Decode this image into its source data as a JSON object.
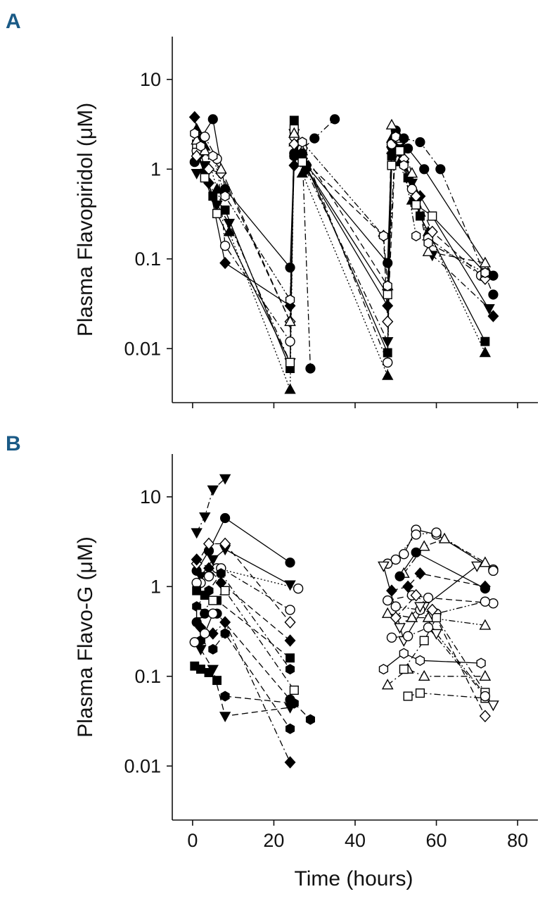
{
  "figure": {
    "x_axis_label": "Time (hours)"
  },
  "chart_data": [
    {
      "panel_label": "A",
      "type": "line",
      "xlabel": "",
      "ylabel": "Plasma Flavopiridol (μM)",
      "y_scale": "log",
      "xlim": [
        -5,
        85
      ],
      "ylim": [
        0.0025,
        30
      ],
      "x_ticks": [
        0,
        20,
        40,
        60,
        80
      ],
      "x_tick_labels": [
        "",
        "",
        "",
        "",
        ""
      ],
      "y_ticks": [
        0.01,
        0.1,
        1,
        10
      ],
      "y_tick_labels": [
        "0.01",
        "0.1",
        "1",
        "10"
      ],
      "series": [
        {
          "marker": "diamond",
          "filled": true,
          "dash": "solid",
          "x": [
            0.5,
            2,
            4,
            8,
            24,
            25,
            26,
            28,
            48,
            49,
            50,
            52,
            56,
            74
          ],
          "y": [
            3.8,
            1.5,
            0.7,
            0.09,
            0.03,
            1.1,
            1.6,
            1.0,
            0.03,
            1.5,
            2.4,
            1.2,
            0.5,
            0.023
          ]
        },
        {
          "marker": "circle",
          "filled": true,
          "dash": "solid",
          "x": [
            0.5,
            2,
            5,
            8,
            24,
            25,
            26,
            28,
            48,
            49,
            50,
            53,
            57,
            74
          ],
          "y": [
            1.2,
            2.2,
            3.6,
            0.6,
            0.08,
            1.5,
            1.8,
            1.1,
            0.09,
            1.8,
            2.7,
            1.7,
            1.0,
            0.065
          ]
        },
        {
          "marker": "square",
          "filled": true,
          "dash": "solid",
          "x": [
            1,
            3,
            5,
            8,
            24,
            25,
            27,
            48,
            49,
            51,
            53,
            56,
            72
          ],
          "y": [
            1.5,
            0.9,
            0.5,
            0.35,
            0.006,
            3.5,
            1.4,
            0.009,
            1.4,
            1.9,
            0.8,
            0.3,
            0.012
          ]
        },
        {
          "marker": "triangle-down",
          "filled": true,
          "dash": "dashdot",
          "x": [
            1,
            3,
            6,
            9,
            24,
            25,
            27,
            48,
            49,
            51,
            54,
            59,
            73
          ],
          "y": [
            0.9,
            1.1,
            0.4,
            0.25,
            0.007,
            2.5,
            1.2,
            0.012,
            1.6,
            1.5,
            0.7,
            0.11,
            0.028
          ]
        },
        {
          "marker": "triangle-up",
          "filled": true,
          "dash": "dotted",
          "x": [
            1,
            3,
            6,
            9,
            24,
            25,
            27,
            48,
            49,
            51,
            54,
            58,
            72
          ],
          "y": [
            2.8,
            1.8,
            0.6,
            0.2,
            0.0035,
            2.0,
            0.9,
            0.005,
            2.2,
            1.2,
            0.45,
            0.2,
            0.009
          ]
        },
        {
          "marker": "circle",
          "filled": false,
          "dash": "dashdot",
          "x": [
            1,
            3,
            6,
            8,
            24,
            25,
            27,
            48,
            49,
            51,
            54,
            58,
            71
          ],
          "y": [
            1.6,
            2.3,
            1.3,
            0.14,
            0.012,
            2.3,
            1.7,
            0.007,
            1.9,
            2.1,
            0.6,
            0.17,
            0.065
          ]
        },
        {
          "marker": "diamond",
          "filled": false,
          "dash": "dashed",
          "x": [
            1,
            4,
            7,
            24,
            25,
            27,
            47,
            48,
            50,
            52,
            55,
            59,
            72
          ],
          "y": [
            1.4,
            1.0,
            0.9,
            0.02,
            1.9,
            1.3,
            0.18,
            0.02,
            2.2,
            1.3,
            0.5,
            0.2,
            0.06
          ]
        },
        {
          "marker": "square",
          "filled": false,
          "dash": "solid",
          "x": [
            1,
            3,
            6,
            24,
            25,
            27,
            48,
            49,
            51,
            55,
            59,
            72
          ],
          "y": [
            1.9,
            0.8,
            0.32,
            0.007,
            2.8,
            1.2,
            0.04,
            1.1,
            1.6,
            0.4,
            0.3,
            0.07
          ]
        },
        {
          "marker": "triangle-up",
          "filled": false,
          "dash": "dashed",
          "x": [
            1,
            3,
            7,
            24,
            25,
            27,
            48,
            49,
            51,
            54,
            58,
            72
          ],
          "y": [
            2.1,
            1.6,
            1.0,
            0.02,
            2.5,
            1.6,
            0.05,
            3.1,
            2.2,
            0.9,
            0.12,
            0.09
          ]
        },
        {
          "marker": "hexagon",
          "filled": false,
          "dash": "dashdotdot",
          "x": [
            0.5,
            2,
            5,
            8,
            24,
            25,
            27,
            47,
            48,
            50,
            52,
            55,
            58,
            72
          ],
          "y": [
            2.5,
            1.8,
            1.4,
            0.5,
            0.035,
            1.4,
            2.0,
            0.18,
            0.05,
            2.3,
            1.1,
            0.18,
            0.15,
            0.07
          ]
        },
        {
          "marker": "circle",
          "filled": true,
          "dash": "dashdot",
          "x": [
            25,
            30,
            35
          ],
          "y": [
            1.4,
            2.2,
            3.6
          ]
        },
        {
          "marker": "circle",
          "filled": true,
          "dash": "dashdot",
          "x": [
            27,
            29
          ],
          "y": [
            1.5,
            0.006
          ]
        },
        {
          "marker": "circle",
          "filled": true,
          "dash": "dashdot",
          "x": [
            52,
            56,
            61,
            74
          ],
          "y": [
            2.2,
            2.0,
            1.0,
            0.04
          ]
        }
      ]
    },
    {
      "panel_label": "B",
      "type": "line",
      "xlabel": "Time (hours)",
      "ylabel": "Plasma Flavo-G (μM)",
      "y_scale": "log",
      "xlim": [
        -5,
        85
      ],
      "ylim": [
        0.0025,
        30
      ],
      "x_ticks": [
        0,
        20,
        40,
        60,
        80
      ],
      "x_tick_labels": [
        "0",
        "20",
        "40",
        "60",
        "80"
      ],
      "y_ticks": [
        0.01,
        0.1,
        1,
        10
      ],
      "y_tick_labels": [
        "0.01",
        "0.1",
        "1",
        "10"
      ],
      "series": [
        {
          "marker": "triangle-down",
          "filled": true,
          "dash": "dashdot",
          "x": [
            1,
            3,
            5,
            8
          ],
          "y": [
            4.0,
            6.0,
            12.0,
            16.0
          ]
        },
        {
          "marker": "circle",
          "filled": true,
          "dash": "solid",
          "x": [
            1,
            4,
            8,
            24
          ],
          "y": [
            1.5,
            2.5,
            5.8,
            1.85
          ]
        },
        {
          "marker": "triangle-down",
          "filled": true,
          "dash": "solid",
          "x": [
            2,
            5,
            8,
            24
          ],
          "y": [
            1.3,
            2.0,
            2.6,
            1.05
          ]
        },
        {
          "marker": "circle",
          "filled": false,
          "dash": "dotted",
          "x": [
            2,
            6,
            26
          ],
          "y": [
            1.1,
            1.6,
            0.95
          ]
        },
        {
          "marker": "diamond",
          "filled": false,
          "dash": "dashed",
          "x": [
            1,
            4,
            8,
            24
          ],
          "y": [
            1.8,
            3.0,
            3.0,
            0.4
          ]
        },
        {
          "marker": "diamond",
          "filled": true,
          "dash": "dashed",
          "x": [
            1,
            4,
            7,
            24
          ],
          "y": [
            2.0,
            1.6,
            1.1,
            0.25
          ]
        },
        {
          "marker": "circle",
          "filled": false,
          "dash": "dashdot",
          "x": [
            1,
            4,
            7,
            24
          ],
          "y": [
            1.1,
            1.3,
            1.6,
            0.55
          ]
        },
        {
          "marker": "square",
          "filled": true,
          "dash": "dashed",
          "x": [
            1,
            3,
            6,
            24
          ],
          "y": [
            0.9,
            0.8,
            0.7,
            0.16
          ]
        },
        {
          "marker": "hexagon",
          "filled": true,
          "dash": "dashdot",
          "x": [
            1,
            4,
            7,
            24
          ],
          "y": [
            0.6,
            0.9,
            1.4,
            0.12
          ]
        },
        {
          "marker": "square",
          "filled": false,
          "dash": "dashdot",
          "x": [
            2,
            5,
            8,
            25
          ],
          "y": [
            0.5,
            0.7,
            0.9,
            0.07
          ]
        },
        {
          "marker": "circle",
          "filled": true,
          "dash": "dashed",
          "x": [
            1,
            3,
            6,
            24
          ],
          "y": [
            0.4,
            0.5,
            0.5,
            0.055
          ]
        },
        {
          "marker": "diamond",
          "filled": true,
          "dash": "dashdot",
          "x": [
            2,
            5,
            8,
            24
          ],
          "y": [
            0.35,
            0.3,
            0.4,
            0.011
          ]
        },
        {
          "marker": "hexagon",
          "filled": true,
          "dash": "dashed",
          "x": [
            2,
            5,
            8,
            24
          ],
          "y": [
            0.25,
            0.2,
            0.3,
            0.026
          ]
        },
        {
          "marker": "triangle-down",
          "filled": true,
          "dash": "dashed",
          "x": [
            2,
            5,
            8,
            24
          ],
          "y": [
            0.2,
            0.12,
            0.036,
            0.045
          ]
        },
        {
          "marker": "hexagon",
          "filled": true,
          "dash": "dashed",
          "x": [
            8,
            25,
            29
          ],
          "y": [
            0.06,
            0.05,
            0.033
          ]
        },
        {
          "marker": "circle",
          "filled": false,
          "dash": "solid",
          "x": [
            0.5,
            3,
            5
          ],
          "y": [
            0.24,
            0.3,
            0.5
          ]
        },
        {
          "marker": "square",
          "filled": true,
          "dash": "solid",
          "x": [
            0.5,
            2,
            4,
            6
          ],
          "y": [
            0.13,
            0.12,
            0.11,
            0.09
          ]
        },
        {
          "marker": "circle",
          "filled": false,
          "dash": "solid",
          "x": [
            48,
            52,
            55,
            60,
            74
          ],
          "y": [
            1.8,
            2.3,
            4.3,
            3.8,
            1.55
          ]
        },
        {
          "marker": "circle",
          "filled": false,
          "dash": "dotted",
          "x": [
            50,
            55,
            60,
            74
          ],
          "y": [
            2.0,
            3.8,
            4.0,
            1.5
          ]
        },
        {
          "marker": "triangle-up",
          "filled": false,
          "dash": "dashdot",
          "x": [
            52,
            57,
            62,
            72
          ],
          "y": [
            1.4,
            2.8,
            3.4,
            1.85
          ]
        },
        {
          "marker": "circle",
          "filled": true,
          "dash": "solid",
          "x": [
            51,
            55,
            72
          ],
          "y": [
            1.3,
            2.4,
            0.95
          ]
        },
        {
          "marker": "triangle-down",
          "filled": false,
          "dash": "solid",
          "x": [
            47,
            52,
            57,
            70
          ],
          "y": [
            1.7,
            0.25,
            0.6,
            1.7
          ]
        },
        {
          "marker": "diamond",
          "filled": true,
          "dash": "dashed",
          "x": [
            49,
            53,
            56,
            72
          ],
          "y": [
            0.9,
            1.0,
            1.4,
            1.0
          ]
        },
        {
          "marker": "circle",
          "filled": false,
          "dash": "dashed",
          "x": [
            48,
            54,
            58,
            74
          ],
          "y": [
            0.7,
            0.8,
            0.75,
            0.65
          ]
        },
        {
          "marker": "circle",
          "filled": false,
          "dash": "dashdotdot",
          "x": [
            50,
            56,
            60,
            72
          ],
          "y": [
            0.6,
            0.55,
            0.5,
            0.68
          ]
        },
        {
          "marker": "triangle-up",
          "filled": false,
          "dash": "dashdotdot",
          "x": [
            48,
            54,
            58,
            72
          ],
          "y": [
            0.5,
            0.45,
            0.45,
            0.37
          ]
        },
        {
          "marker": "hexagon",
          "filled": false,
          "dash": "solid",
          "x": [
            47,
            52,
            56,
            71
          ],
          "y": [
            0.12,
            0.18,
            0.15,
            0.14
          ]
        },
        {
          "marker": "triangle-up",
          "filled": false,
          "dash": "dashdot",
          "x": [
            48,
            53,
            57,
            72
          ],
          "y": [
            0.08,
            0.12,
            0.1,
            0.1
          ]
        },
        {
          "marker": "square",
          "filled": false,
          "dash": "dashdot",
          "x": [
            52,
            57,
            60,
            72
          ],
          "y": [
            0.12,
            0.25,
            0.45,
            0.066
          ]
        },
        {
          "marker": "square",
          "filled": false,
          "dash": "dashdot",
          "x": [
            53,
            56,
            72
          ],
          "y": [
            0.06,
            0.065,
            0.057
          ]
        },
        {
          "marker": "diamond",
          "filled": false,
          "dash": "dashed",
          "x": [
            50,
            55,
            59,
            72
          ],
          "y": [
            0.45,
            0.8,
            0.55,
            0.036
          ]
        },
        {
          "marker": "triangle-down",
          "filled": false,
          "dash": "dashdotdot",
          "x": [
            51,
            56,
            60,
            74
          ],
          "y": [
            0.35,
            0.6,
            0.3,
            0.048
          ]
        },
        {
          "marker": "circle",
          "filled": false,
          "dash": "dashdot",
          "x": [
            49,
            53,
            58,
            72
          ],
          "y": [
            0.27,
            0.28,
            0.35,
            0.06
          ]
        }
      ]
    }
  ]
}
